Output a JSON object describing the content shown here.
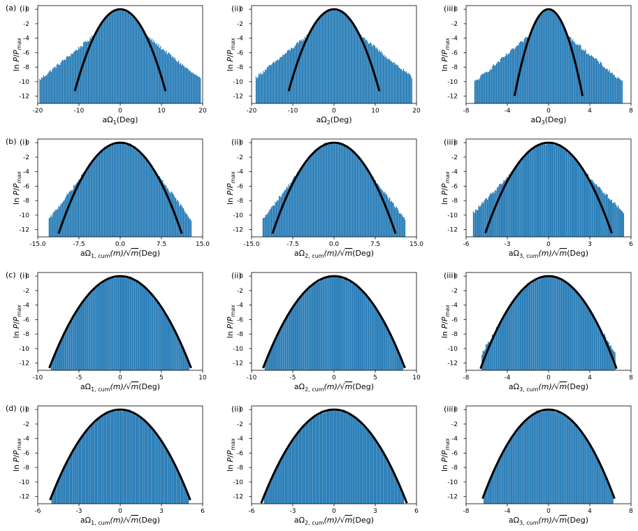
{
  "figure": {
    "row_labels": [
      "(a)",
      "(b)",
      "(c)",
      "(d)"
    ],
    "bar_color": "#1f77b4",
    "curve_color": "#000000"
  },
  "chart_data": [
    {
      "type": "bar",
      "row": 0,
      "col": 0,
      "panel": "(i)",
      "xlabel": "aΩ₁(Deg)",
      "xlabel_main": "aΩ",
      "xlabel_sub": "1",
      "xlabel_tail": "(Deg)",
      "ylabel": "ln P/P_max",
      "xlim": [
        -20,
        20
      ],
      "ylim": [
        -13,
        0.5
      ],
      "xticks": [
        -20,
        -10,
        0,
        10,
        20
      ],
      "xtick_labels": [
        "-20",
        "-10",
        "0",
        "10",
        "20"
      ],
      "yticks": [
        0,
        -2,
        -4,
        -6,
        -8,
        -10,
        -12
      ],
      "hist": {
        "center": 0,
        "fit_halfwidth": 11,
        "support": 19.6,
        "tail_level": -10.2,
        "tail_scale": 2.6,
        "n_bins": 170
      },
      "fit": {
        "a2": 0.0934,
        "a4": 0.0
      },
      "bar_color": "#1f77b4"
    },
    {
      "type": "bar",
      "row": 0,
      "col": 1,
      "panel": "(ii)",
      "xlabel": "aΩ₂(Deg)",
      "xlabel_main": "aΩ",
      "xlabel_sub": "2",
      "xlabel_tail": "(Deg)",
      "ylabel": "ln P/P_max",
      "xlim": [
        -20,
        20
      ],
      "ylim": [
        -13,
        0.5
      ],
      "xticks": [
        -20,
        -10,
        0,
        10,
        20
      ],
      "xtick_labels": [
        "-20",
        "-10",
        "0",
        "10",
        "20"
      ],
      "yticks": [
        0,
        -2,
        -4,
        -6,
        -8,
        -10,
        -12
      ],
      "hist": {
        "center": 0,
        "fit_halfwidth": 11,
        "support": 19.0,
        "tail_level": -10.0,
        "tail_scale": 2.6,
        "n_bins": 170
      },
      "fit": {
        "a2": 0.0934,
        "a4": 0.0
      },
      "bar_color": "#1f77b4"
    },
    {
      "type": "bar",
      "row": 0,
      "col": 2,
      "panel": "(iii)",
      "xlabel": "aΩ₃(Deg)",
      "xlabel_main": "aΩ",
      "xlabel_sub": "3",
      "xlabel_tail": "(Deg)",
      "ylabel": "ln P/P_max",
      "xlim": [
        -8,
        8
      ],
      "ylim": [
        -13,
        0.5
      ],
      "xticks": [
        -8,
        -4,
        0,
        4,
        8
      ],
      "xtick_labels": [
        "-8",
        "-4",
        "0",
        "4",
        "8"
      ],
      "yticks": [
        0,
        -2,
        -4,
        -6,
        -8,
        -10,
        -12
      ],
      "hist": {
        "center": 0,
        "fit_halfwidth": 3.3,
        "support": 7.2,
        "tail_level": -10.3,
        "tail_scale": 1.0,
        "n_bins": 150
      },
      "fit": {
        "a2": 1.1,
        "a4": 0.0
      },
      "bar_color": "#1f77b4"
    },
    {
      "type": "bar",
      "row": 1,
      "col": 0,
      "panel": "(i)",
      "xlabel": "aΩ₁,cum(m)/√m(Deg)",
      "xlabel_main": "aΩ",
      "xlabel_sub": "1, cum",
      "xlabel_mid": "(m)/√",
      "xlabel_over": "m",
      "xlabel_tail": "(Deg)",
      "ylabel": "ln P/P_max",
      "xlim": [
        -15,
        15
      ],
      "ylim": [
        -13,
        0.5
      ],
      "xticks": [
        -15,
        -7.5,
        0,
        7.5,
        15
      ],
      "xtick_labels": [
        "-15.0",
        "-7.5",
        "0.0",
        "7.5",
        "15.0"
      ],
      "yticks": [
        0,
        -2,
        -4,
        -6,
        -8,
        -10,
        -12
      ],
      "hist": {
        "center": 0,
        "fit_halfwidth": 11.2,
        "support": 13.0,
        "tail_level": -11.0,
        "tail_scale": 1.2,
        "n_bins": 150
      },
      "fit": {
        "a2": 0.1,
        "a4": 0.0
      },
      "bar_color": "#1f77b4"
    },
    {
      "type": "bar",
      "row": 1,
      "col": 1,
      "panel": "(ii)",
      "xlabel": "aΩ₂,cum(m)/√m(Deg)",
      "xlabel_main": "aΩ",
      "xlabel_sub": "2, cum",
      "xlabel_mid": "(m)/√",
      "xlabel_over": "m",
      "xlabel_tail": "(Deg)",
      "ylabel": "ln P/P_max",
      "xlim": [
        -15,
        15
      ],
      "ylim": [
        -13,
        0.5
      ],
      "xticks": [
        -15,
        -7.5,
        0,
        7.5,
        15
      ],
      "xtick_labels": [
        "-15.0",
        "-7.5",
        "0.0",
        "7.5",
        "15.0"
      ],
      "yticks": [
        0,
        -2,
        -4,
        -6,
        -8,
        -10,
        -12
      ],
      "hist": {
        "center": 0,
        "fit_halfwidth": 11.2,
        "support": 13.0,
        "tail_level": -11.0,
        "tail_scale": 1.2,
        "n_bins": 150
      },
      "fit": {
        "a2": 0.1,
        "a4": 0.0
      },
      "bar_color": "#1f77b4"
    },
    {
      "type": "bar",
      "row": 1,
      "col": 2,
      "panel": "(iii)",
      "xlabel": "aΩ₃,cum(m)/√m(Deg)",
      "xlabel_main": "aΩ",
      "xlabel_sub": "3, cum",
      "xlabel_mid": "(m)/√",
      "xlabel_over": "m",
      "xlabel_tail": "(Deg)",
      "ylabel": "ln P/P_max",
      "xlim": [
        -6,
        6
      ],
      "ylim": [
        -13,
        0.5
      ],
      "xticks": [
        -6,
        -3,
        0,
        3,
        6
      ],
      "xtick_labels": [
        "-6",
        "-3",
        "0",
        "3",
        "6"
      ],
      "yticks": [
        0,
        -2,
        -4,
        -6,
        -8,
        -10,
        -12
      ],
      "hist": {
        "center": 0,
        "fit_halfwidth": 4.6,
        "support": 5.5,
        "tail_level": -11.2,
        "tail_scale": 0.6,
        "n_bins": 140
      },
      "fit": {
        "a2": 0.59,
        "a4": 0.0
      },
      "bar_color": "#1f77b4"
    },
    {
      "type": "bar",
      "row": 2,
      "col": 0,
      "panel": "(i)",
      "xlabel": "aΩ₁,cum(m)/√m(Deg)",
      "xlabel_main": "aΩ",
      "xlabel_sub": "1, cum",
      "xlabel_mid": "(m)/√",
      "xlabel_over": "m",
      "xlabel_tail": "(Deg)",
      "ylabel": "ln P/P_max",
      "xlim": [
        -10,
        10
      ],
      "ylim": [
        -13,
        0.5
      ],
      "xticks": [
        -10,
        -5,
        0,
        5,
        10
      ],
      "xtick_labels": [
        "-10",
        "-5",
        "0",
        "5",
        "10"
      ],
      "yticks": [
        0,
        -2,
        -4,
        -6,
        -8,
        -10,
        -12
      ],
      "hist": {
        "center": 0,
        "fit_halfwidth": 8.6,
        "support": 8.4,
        "tail_level": -11.4,
        "tail_scale": 0.4,
        "n_bins": 130
      },
      "fit": {
        "a2": 0.1716,
        "a4": 0.0
      },
      "bar_color": "#1f77b4"
    },
    {
      "type": "bar",
      "row": 2,
      "col": 1,
      "panel": "(ii)",
      "xlabel": "aΩ₂,cum(m)/√m(Deg)",
      "xlabel_main": "aΩ",
      "xlabel_sub": "2, cum",
      "xlabel_mid": "(m)/√",
      "xlabel_over": "m",
      "xlabel_tail": "(Deg)",
      "ylabel": "ln P/P_max",
      "xlim": [
        -10,
        10
      ],
      "ylim": [
        -13,
        0.5
      ],
      "xticks": [
        -10,
        -5,
        0,
        5,
        10
      ],
      "xtick_labels": [
        "-10",
        "-5",
        "0",
        "5",
        "10"
      ],
      "yticks": [
        0,
        -2,
        -4,
        -6,
        -8,
        -10,
        -12
      ],
      "hist": {
        "center": 0,
        "fit_halfwidth": 8.6,
        "support": 8.4,
        "tail_level": -11.4,
        "tail_scale": 0.4,
        "n_bins": 130
      },
      "fit": {
        "a2": 0.1716,
        "a4": 0.0
      },
      "bar_color": "#1f77b4"
    },
    {
      "type": "bar",
      "row": 2,
      "col": 2,
      "panel": "(iii)",
      "xlabel": "aΩ₃,cum(m)/√m(Deg)",
      "xlabel_main": "aΩ",
      "xlabel_sub": "3, cum",
      "xlabel_mid": "(m)/√",
      "xlabel_over": "m",
      "xlabel_tail": "(Deg)",
      "ylabel": "ln P/P_max",
      "xlim": [
        -8,
        8
      ],
      "ylim": [
        -13,
        0.5
      ],
      "xticks": [
        -8,
        -4,
        0,
        4,
        8
      ],
      "xtick_labels": [
        "-8",
        "-4",
        "0",
        "4",
        "8"
      ],
      "yticks": [
        0,
        -2,
        -4,
        -6,
        -8,
        -10,
        -12
      ],
      "hist": {
        "center": 0,
        "fit_halfwidth": 6.6,
        "support": 6.5,
        "tail_level": -11.4,
        "tail_scale": 0.5,
        "n_bins": 130
      },
      "fit": {
        "a2": 0.2933,
        "a4": 0.0
      },
      "bar_color": "#1f77b4"
    },
    {
      "type": "bar",
      "row": 3,
      "col": 0,
      "panel": "(i)",
      "xlabel": "aΩ₁,cum(m)/√m(Deg)",
      "xlabel_main": "aΩ",
      "xlabel_sub": "1, cum",
      "xlabel_mid": "(m)/√",
      "xlabel_over": "m",
      "xlabel_tail": "(Deg)",
      "ylabel": "ln P/P_max",
      "xlim": [
        -6,
        6
      ],
      "ylim": [
        -13,
        0.5
      ],
      "xticks": [
        -6,
        -3,
        0,
        3,
        6
      ],
      "xtick_labels": [
        "-6",
        "-3",
        "0",
        "3",
        "6"
      ],
      "yticks": [
        0,
        -2,
        -4,
        -6,
        -8,
        -10,
        -12
      ],
      "hist": {
        "center": 0,
        "fit_halfwidth": 5.1,
        "support": 5.0,
        "tail_level": -11.4,
        "tail_scale": 0.3,
        "n_bins": 120
      },
      "fit": {
        "a2": 0.48,
        "a4": 0.0
      },
      "bar_color": "#1f77b4"
    },
    {
      "type": "bar",
      "row": 3,
      "col": 1,
      "panel": "(ii)",
      "xlabel": "aΩ₂,cum(m)/√m(Deg)",
      "xlabel_main": "aΩ",
      "xlabel_sub": "2, cum",
      "xlabel_mid": "(m)/√",
      "xlabel_over": "m",
      "xlabel_tail": "(Deg)",
      "ylabel": "ln P/P_max",
      "xlim": [
        -6,
        6
      ],
      "ylim": [
        -13,
        0.5
      ],
      "xticks": [
        -6,
        -3,
        0,
        3,
        6
      ],
      "xtick_labels": [
        "-6",
        "-3",
        "0",
        "3",
        "6"
      ],
      "yticks": [
        0,
        -2,
        -4,
        -6,
        -8,
        -10,
        -12
      ],
      "hist": {
        "center": 0,
        "fit_halfwidth": 5.3,
        "support": 5.1,
        "tail_level": -11.4,
        "tail_scale": 0.3,
        "n_bins": 120
      },
      "fit": {
        "a2": 0.46,
        "a4": 0.0
      },
      "bar_color": "#1f77b4"
    },
    {
      "type": "bar",
      "row": 3,
      "col": 2,
      "panel": "(iii)",
      "xlabel": "aΩ₃,cum(m)/√m(Deg)",
      "xlabel_main": "aΩ",
      "xlabel_sub": "3, cum",
      "xlabel_mid": "(m)/√",
      "xlabel_over": "m",
      "xlabel_tail": "(Deg)",
      "ylabel": "ln P/P_max",
      "xlim": [
        -8,
        8
      ],
      "ylim": [
        -13,
        0.5
      ],
      "xticks": [
        -8,
        -4,
        0,
        4,
        8
      ],
      "xtick_labels": [
        "-8",
        "-4",
        "0",
        "4",
        "8"
      ],
      "yticks": [
        0,
        -2,
        -4,
        -6,
        -8,
        -10,
        -12
      ],
      "hist": {
        "center": 0,
        "fit_halfwidth": 6.4,
        "support": 6.3,
        "tail_level": -11.4,
        "tail_scale": 0.4,
        "n_bins": 130
      },
      "fit": {
        "a2": 0.3,
        "a4": 0.0
      },
      "bar_color": "#1f77b4"
    }
  ]
}
